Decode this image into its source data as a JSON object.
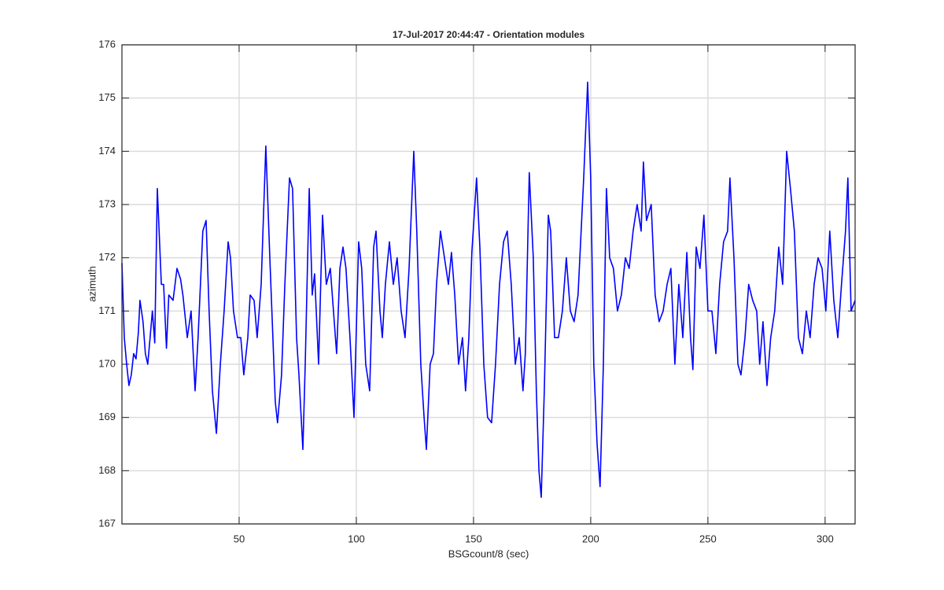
{
  "chart_data": {
    "type": "line",
    "title": "17-Jul-2017 20:44:47 - Orientation modules",
    "x_label": "BSGcount/8 (sec)",
    "y_label": "azimuth",
    "xlim": [
      0,
      312.8
    ],
    "ylim": [
      167,
      176
    ],
    "xticks": [
      50,
      100,
      150,
      200,
      250,
      300
    ],
    "yticks": [
      167,
      168,
      169,
      170,
      171,
      172,
      173,
      174,
      175,
      176
    ],
    "grid": true,
    "x": [
      0,
      1,
      2,
      3,
      4,
      5,
      6,
      7,
      7.7,
      9,
      10,
      11,
      12,
      13,
      14,
      15.1,
      16.8,
      17.8,
      19,
      20,
      21.8,
      23.5,
      25,
      26,
      27.9,
      29.5,
      31.2,
      32.5,
      34.5,
      35.9,
      37.2,
      38.6,
      40.3,
      42,
      43.6,
      45.3,
      46.3,
      47.6,
      49.3,
      50.7,
      52,
      53.7,
      54.7,
      56.4,
      57.7,
      59.4,
      61.4,
      63.1,
      64.4,
      65.4,
      66.4,
      68.1,
      69.5,
      71.5,
      72.8,
      74.5,
      75.5,
      77.2,
      78.2,
      79.9,
      81.2,
      82.2,
      83.9,
      85.6,
      87.2,
      88.9,
      90.6,
      91.6,
      93,
      94.3,
      95.6,
      97.3,
      99,
      101,
      102.3,
      104,
      105.7,
      107.4,
      108.4,
      110.1,
      111.1,
      112.4,
      114.1,
      115.8,
      117.4,
      119.1,
      120.8,
      122.5,
      124.5,
      125.8,
      127.5,
      128.9,
      129.9,
      131.5,
      132.9,
      134.2,
      135.9,
      137.6,
      139.3,
      140.6,
      142,
      143.6,
      145.3,
      146.6,
      148,
      149.3,
      151.3,
      152.7,
      154.4,
      156,
      157.7,
      159.4,
      161.1,
      162.8,
      164.4,
      166.1,
      167.8,
      169.5,
      171.1,
      172.1,
      173.8,
      175.5,
      176.8,
      177.9,
      178.9,
      180.2,
      181.9,
      182.9,
      184.6,
      186.2,
      187.9,
      189.6,
      191.3,
      192.9,
      194.6,
      197,
      198.7,
      200,
      201.3,
      202.7,
      204,
      205.4,
      206.7,
      208.1,
      209.7,
      211.4,
      213.1,
      214.8,
      216.4,
      218.1,
      219.8,
      221.5,
      222.5,
      223.8,
      225.8,
      227.5,
      229.2,
      230.9,
      232.6,
      234.2,
      235.9,
      237.6,
      239.3,
      241,
      242.6,
      243.6,
      245,
      246.6,
      248.3,
      250,
      251.7,
      253.4,
      255,
      256.7,
      258.4,
      259.4,
      261.1,
      262.8,
      264.1,
      265.8,
      267.4,
      269.1,
      270.8,
      272.1,
      273.5,
      275.2,
      276.8,
      278.5,
      280.2,
      281.9,
      283.6,
      285.2,
      286.9,
      288.6,
      290.3,
      292,
      293.6,
      295.3,
      297,
      298.7,
      300.3,
      302,
      303.7,
      305.4,
      307,
      308.7,
      309.7,
      311.1,
      312.8
    ],
    "series": [
      {
        "name": "azimuth",
        "color": "#0000ff",
        "values": [
          171.9,
          170.5,
          170.0,
          169.6,
          169.8,
          170.2,
          170.1,
          170.6,
          171.2,
          170.8,
          170.2,
          170.0,
          170.5,
          171.0,
          170.4,
          173.3,
          171.5,
          171.5,
          170.3,
          171.3,
          171.2,
          171.8,
          171.6,
          171.3,
          170.5,
          171.0,
          169.5,
          170.5,
          172.5,
          172.7,
          171.0,
          169.5,
          168.7,
          170.0,
          171.0,
          172.3,
          172.0,
          171.0,
          170.5,
          170.5,
          169.8,
          170.5,
          171.3,
          171.2,
          170.5,
          171.5,
          174.1,
          172.0,
          170.5,
          169.3,
          168.9,
          169.8,
          171.5,
          173.5,
          173.3,
          170.5,
          169.8,
          168.4,
          170.0,
          173.3,
          171.3,
          171.7,
          170.0,
          172.8,
          171.5,
          171.8,
          170.8,
          170.2,
          171.8,
          172.2,
          171.8,
          170.5,
          169.0,
          172.3,
          171.8,
          170.0,
          169.5,
          172.2,
          172.5,
          171.0,
          170.5,
          171.5,
          172.3,
          171.5,
          172.0,
          171.0,
          170.5,
          171.8,
          174.0,
          172.5,
          170.0,
          169.0,
          168.4,
          170.0,
          170.2,
          171.5,
          172.5,
          172.0,
          171.5,
          172.1,
          171.3,
          170.0,
          170.5,
          169.5,
          170.5,
          172.1,
          173.5,
          172.2,
          170.0,
          169.0,
          168.9,
          170.0,
          171.5,
          172.3,
          172.5,
          171.5,
          170.0,
          170.5,
          169.5,
          170.2,
          173.6,
          172.0,
          169.5,
          168.0,
          167.5,
          169.5,
          172.8,
          172.5,
          170.5,
          170.5,
          171.0,
          172.0,
          171.0,
          170.8,
          171.3,
          173.5,
          175.3,
          173.5,
          170.0,
          168.5,
          167.7,
          170.0,
          173.3,
          172.0,
          171.8,
          171.0,
          171.3,
          172.0,
          171.8,
          172.5,
          173.0,
          172.5,
          173.8,
          172.7,
          173.0,
          171.3,
          170.8,
          171.0,
          171.5,
          171.8,
          170.0,
          171.5,
          170.5,
          172.1,
          170.5,
          169.9,
          172.2,
          171.8,
          172.8,
          171.0,
          171.0,
          170.2,
          171.5,
          172.3,
          172.5,
          173.5,
          172.0,
          170.0,
          169.8,
          170.5,
          171.5,
          171.2,
          171.0,
          170.0,
          170.8,
          169.6,
          170.5,
          171.0,
          172.2,
          171.5,
          174.0,
          173.3,
          172.5,
          170.5,
          170.2,
          171.0,
          170.5,
          171.5,
          172.0,
          171.8,
          171.0,
          172.5,
          171.2,
          170.5,
          171.5,
          172.5,
          173.5,
          171.0,
          171.2
        ]
      }
    ]
  }
}
